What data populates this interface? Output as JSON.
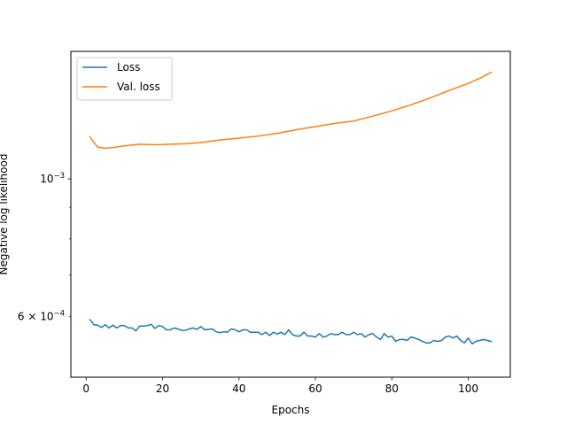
{
  "chart_data": {
    "type": "line",
    "title": "",
    "xlabel": "Epochs",
    "ylabel": "Negative log likelihood",
    "yscale": "log",
    "xlim": [
      -4,
      111
    ],
    "ylim": [
      0.000479,
      0.001605
    ],
    "x_ticks": [
      0,
      20,
      40,
      60,
      80,
      100
    ],
    "x_tick_labels": [
      "0",
      "20",
      "40",
      "60",
      "80",
      "100"
    ],
    "y_major_ticks": [
      {
        "value": 0.001,
        "base": "10",
        "exp": "−3"
      }
    ],
    "y_minor_ticks": [
      {
        "value": 0.0006,
        "mant": "6 × 10",
        "exp": "−4"
      }
    ],
    "legend": {
      "location": "upper-left",
      "entries": [
        "Loss",
        "Val. loss"
      ]
    },
    "series": [
      {
        "name": "Loss",
        "color": "#1f77b4",
        "x": [
          1,
          2,
          3,
          4,
          5,
          6,
          7,
          8,
          9,
          10,
          11,
          12,
          13,
          14,
          15,
          16,
          17,
          18,
          19,
          20,
          21,
          22,
          23,
          24,
          25,
          26,
          27,
          28,
          29,
          30,
          31,
          32,
          33,
          34,
          35,
          36,
          37,
          38,
          39,
          40,
          41,
          42,
          43,
          44,
          45,
          46,
          47,
          48,
          49,
          50,
          51,
          52,
          53,
          54,
          55,
          56,
          57,
          58,
          59,
          60,
          61,
          62,
          63,
          64,
          65,
          66,
          67,
          68,
          69,
          70,
          71,
          72,
          73,
          74,
          75,
          76,
          77,
          78,
          79,
          80,
          81,
          82,
          83,
          84,
          85,
          86,
          87,
          88,
          89,
          90,
          91,
          92,
          93,
          94,
          95,
          96,
          97,
          98,
          99,
          100,
          101,
          102,
          103,
          104,
          105,
          106
        ],
        "values": [
          0.000593,
          0.000582,
          0.000581,
          0.000576,
          0.000582,
          0.000575,
          0.000581,
          0.000575,
          0.00058,
          0.00058,
          0.000575,
          0.000575,
          0.000569,
          0.000579,
          0.000579,
          0.00058,
          0.000583,
          0.000574,
          0.00058,
          0.000578,
          0.000571,
          0.000571,
          0.000575,
          0.000573,
          0.00057,
          0.00057,
          0.000573,
          0.000575,
          0.000572,
          0.000578,
          0.000571,
          0.000572,
          0.000573,
          0.000567,
          0.000565,
          0.000567,
          0.000566,
          0.000573,
          0.000571,
          0.000567,
          0.000571,
          0.000571,
          0.000566,
          0.000566,
          0.000566,
          0.000561,
          0.000566,
          0.000559,
          0.000566,
          0.000562,
          0.000566,
          0.000561,
          0.000571,
          0.000561,
          0.000558,
          0.000558,
          0.000566,
          0.000558,
          0.000558,
          0.000556,
          0.000563,
          0.000556,
          0.000558,
          0.000563,
          0.000561,
          0.000561,
          0.000566,
          0.000561,
          0.000561,
          0.000566,
          0.000561,
          0.000563,
          0.000556,
          0.000561,
          0.000563,
          0.000556,
          0.000551,
          0.000563,
          0.000556,
          0.000558,
          0.000547,
          0.000551,
          0.000551,
          0.000549,
          0.000556,
          0.000554,
          0.000551,
          0.000547,
          0.000544,
          0.000544,
          0.000549,
          0.000547,
          0.000549,
          0.000556,
          0.000558,
          0.000554,
          0.000558,
          0.000549,
          0.000544,
          0.000554,
          0.000542,
          0.000547,
          0.000549,
          0.000551,
          0.000549,
          0.000547
        ]
      },
      {
        "name": "Val. loss",
        "color": "#ff7f0e",
        "x": [
          1,
          3,
          5,
          7,
          10,
          14,
          18,
          22,
          26,
          30,
          35,
          40,
          45,
          50,
          55,
          60,
          65,
          70,
          75,
          80,
          85,
          90,
          95,
          100,
          103,
          106
        ],
        "values": [
          0.001168,
          0.001125,
          0.00112,
          0.001123,
          0.00113,
          0.001137,
          0.001135,
          0.001137,
          0.001139,
          0.001144,
          0.001155,
          0.001163,
          0.001172,
          0.001184,
          0.0012,
          0.001214,
          0.001228,
          0.001239,
          0.001262,
          0.001287,
          0.001316,
          0.00135,
          0.001388,
          0.001425,
          0.001452,
          0.001485
        ]
      }
    ]
  }
}
